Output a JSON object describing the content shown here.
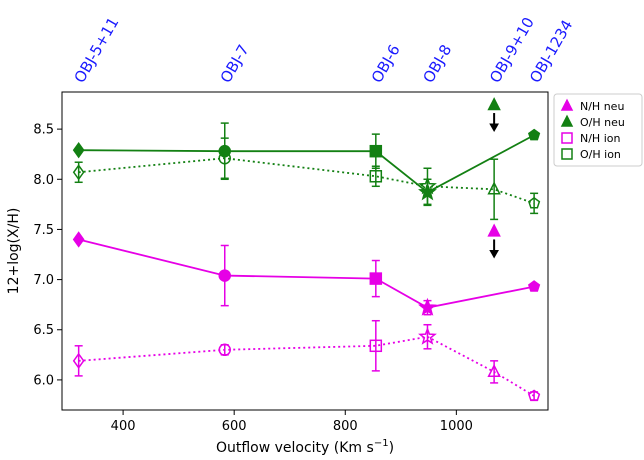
{
  "chart_data": {
    "type": "scatter",
    "xlabel": "Outflow velocity (Km s",
    "xlabel_exp": "−1",
    "xlabel_close": ")",
    "ylabel": "12+log(X/H)",
    "xlim": [
      290,
      1165
    ],
    "ylim": [
      5.7,
      8.87
    ],
    "xticks": [
      400,
      600,
      800,
      1000
    ],
    "yticks": [
      6.0,
      6.5,
      7.0,
      7.5,
      8.0,
      8.5
    ],
    "ytick_labels": [
      "6.0",
      "6.5",
      "7.0",
      "7.5",
      "8.0",
      "8.5"
    ],
    "grid": false,
    "legend_position": "outside-right-top",
    "top_labels": [
      {
        "text": "OBJ-5+11",
        "x": 320
      },
      {
        "text": "OBJ-7",
        "x": 583
      },
      {
        "text": "OBJ-6",
        "x": 855
      },
      {
        "text": "OBJ-8",
        "x": 948
      },
      {
        "text": "OBJ-9+10",
        "x": 1068
      },
      {
        "text": "OBJ-1234",
        "x": 1140
      }
    ],
    "top_label_color": "#1a1aff",
    "series": [
      {
        "name": "N/H neu",
        "legend_marker": "triangle",
        "color": "#e600e6",
        "line": "solid",
        "filled": true,
        "points": [
          {
            "x": 320,
            "y": 7.4,
            "err": 0,
            "marker": "diamond"
          },
          {
            "x": 583,
            "y": 7.04,
            "err": 0.3,
            "marker": "circle"
          },
          {
            "x": 855,
            "y": 7.01,
            "err": 0.18,
            "marker": "square"
          },
          {
            "x": 948,
            "y": 6.72,
            "err": 0.07,
            "marker": "star"
          },
          {
            "x": 1140,
            "y": 6.93,
            "err": 0,
            "marker": "pentagon"
          }
        ]
      },
      {
        "name": "O/H neu",
        "legend_marker": "triangle",
        "color": "#138013",
        "line": "solid",
        "filled": true,
        "points": [
          {
            "x": 320,
            "y": 8.29,
            "err": 0,
            "marker": "diamond"
          },
          {
            "x": 583,
            "y": 8.28,
            "err": 0.28,
            "marker": "circle"
          },
          {
            "x": 855,
            "y": 8.28,
            "err": 0.17,
            "marker": "square"
          },
          {
            "x": 948,
            "y": 7.87,
            "err": 0.13,
            "marker": "star"
          },
          {
            "x": 1140,
            "y": 8.44,
            "err": 0,
            "marker": "pentagon"
          }
        ]
      },
      {
        "name": "N/H ion",
        "legend_marker": "square",
        "color": "#e600e6",
        "line": "dotted",
        "filled": false,
        "points": [
          {
            "x": 320,
            "y": 6.19,
            "err": 0.15,
            "marker": "diamond"
          },
          {
            "x": 583,
            "y": 6.3,
            "err": 0.05,
            "marker": "circle"
          },
          {
            "x": 855,
            "y": 6.34,
            "err": 0.25,
            "marker": "square"
          },
          {
            "x": 948,
            "y": 6.43,
            "err": 0.12,
            "marker": "star"
          },
          {
            "x": 1068,
            "y": 6.08,
            "err": 0.11,
            "marker": "triangle"
          },
          {
            "x": 1140,
            "y": 5.84,
            "err": 0.04,
            "marker": "pentagon"
          }
        ]
      },
      {
        "name": "O/H ion",
        "legend_marker": "square",
        "color": "#138013",
        "line": "dotted",
        "filled": false,
        "points": [
          {
            "x": 320,
            "y": 8.07,
            "err": 0.1,
            "marker": "diamond"
          },
          {
            "x": 583,
            "y": 8.21,
            "err": 0.2,
            "marker": "circle"
          },
          {
            "x": 855,
            "y": 8.03,
            "err": 0.1,
            "marker": "square"
          },
          {
            "x": 948,
            "y": 7.93,
            "err": 0.18,
            "marker": "star"
          },
          {
            "x": 1068,
            "y": 7.9,
            "err": 0.3,
            "marker": "triangle"
          },
          {
            "x": 1140,
            "y": 7.76,
            "err": 0.1,
            "marker": "pentagon"
          }
        ]
      }
    ],
    "upper_limits": [
      {
        "x": 1068,
        "y": 8.74,
        "color": "#138013",
        "marker": "triangle"
      },
      {
        "x": 1068,
        "y": 7.48,
        "color": "#e600e6",
        "marker": "triangle"
      }
    ]
  }
}
